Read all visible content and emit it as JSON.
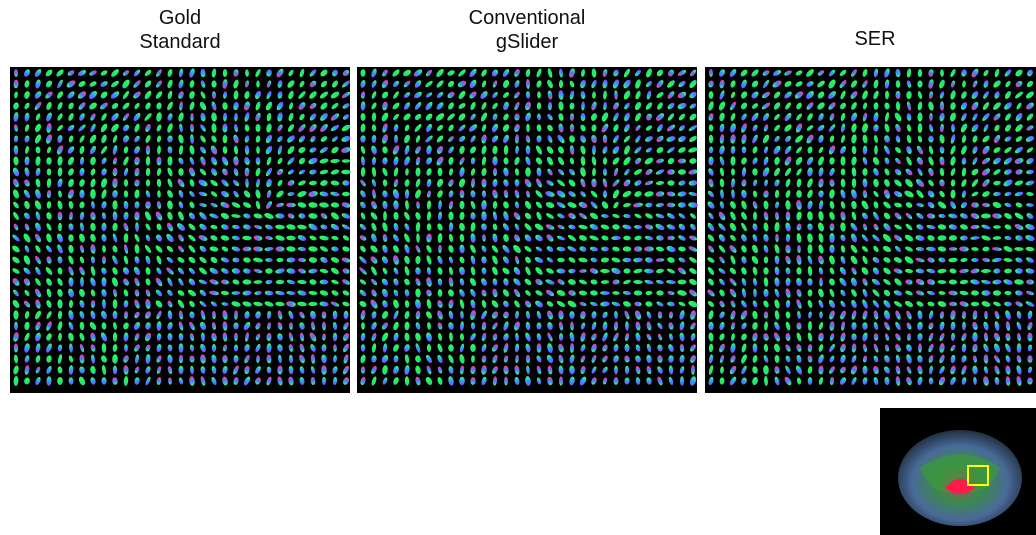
{
  "panels": [
    {
      "title_lines": [
        "Gold",
        "Standard"
      ]
    },
    {
      "title_lines": [
        "Conventional",
        "gSlider"
      ]
    },
    {
      "title_lines": [
        "SER"
      ]
    }
  ]
}
